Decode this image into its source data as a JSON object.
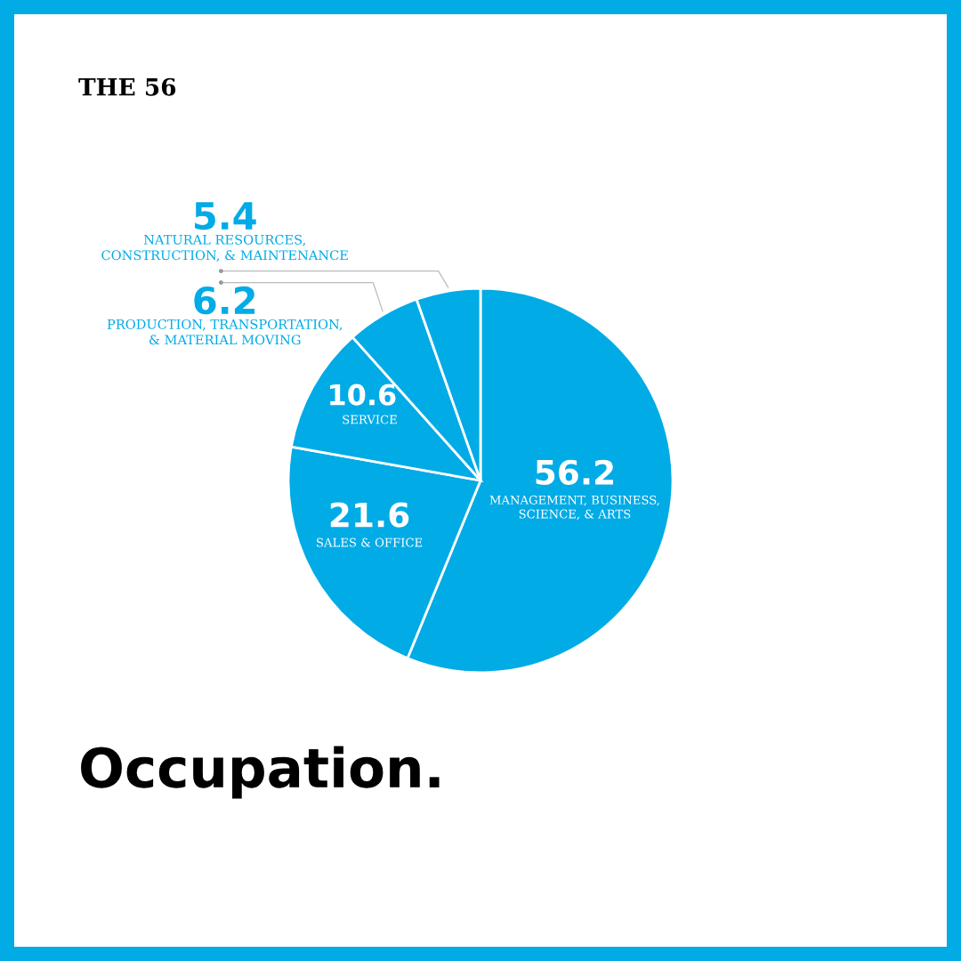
{
  "chart_data": {
    "type": "pie",
    "title": "Occupation.",
    "subtitle": "THE 56",
    "categories": [
      "MANAGEMENT, BUSINESS,\nSCIENCE, & ARTS",
      "SALES & OFFICE",
      "SERVICE",
      "PRODUCTION, TRANSPORTATION,\n& MATERIAL MOVING",
      "NATURAL RESOURCES,\nCONSTRUCTION, & MAINTENANCE"
    ],
    "values": [
      56.2,
      21.6,
      10.6,
      6.2,
      5.4
    ],
    "colors": [
      "#00abe6",
      "#00abe6",
      "#00abe6",
      "#00abe6",
      "#00abe6"
    ],
    "data_labels": true
  }
}
